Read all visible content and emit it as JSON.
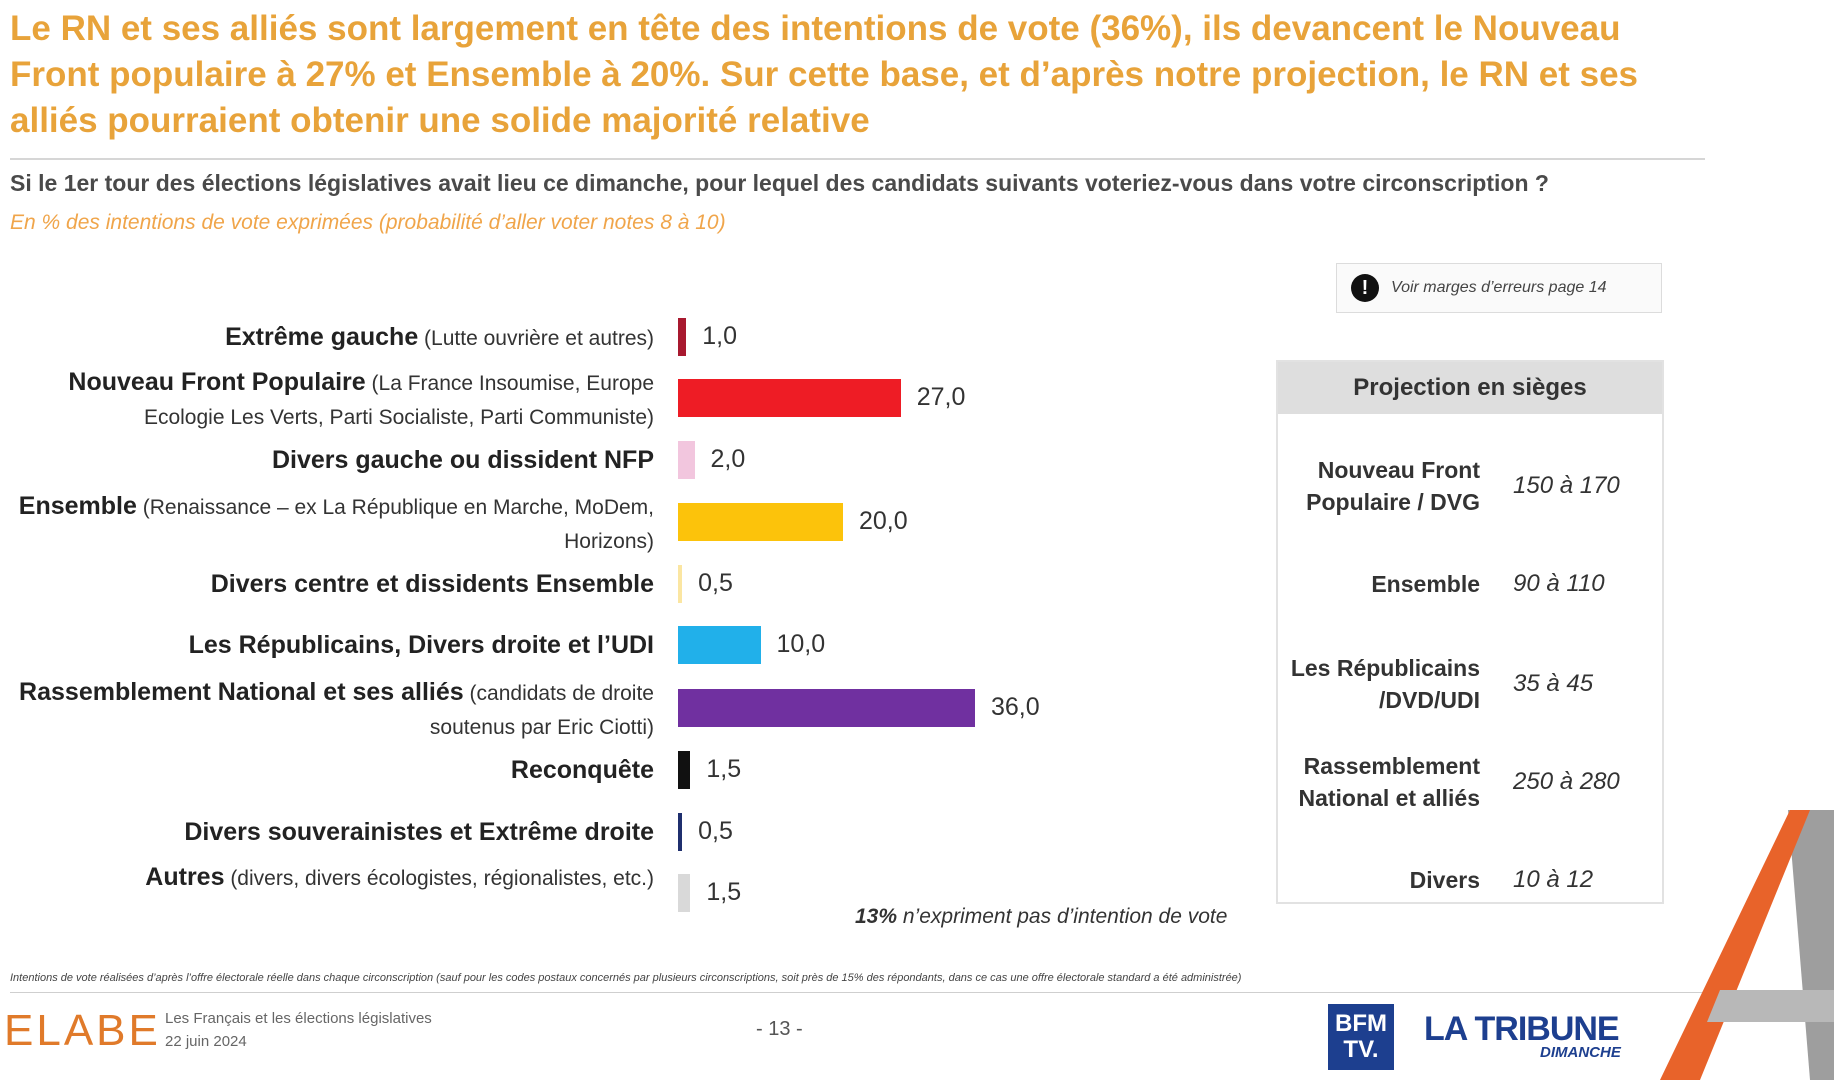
{
  "headline": "Le RN et ses alliés sont largement en tête des intentions de vote (36%), ils devancent le Nouveau Front populaire à 27% et Ensemble à 20%. Sur cette base, et d’après notre projection, le RN et ses alliés pourraient obtenir une solide majorité relative",
  "question": "Si le 1er tour des élections législatives avait lieu ce dimanche, pour lequel des candidats suivants voteriez-vous dans votre circonscription ?",
  "subtitle": "En % des intentions de vote exprimées (probabilité d’aller voter notes 8 à 10)",
  "error_note": "Voir marges d’erreurs page 14",
  "chart_data": {
    "type": "bar",
    "orientation": "horizontal",
    "title": "Si le 1er tour des élections législatives avait lieu ce dimanche, pour lequel des candidats suivants voteriez-vous dans votre circonscription ?",
    "unit": "% des intentions de vote exprimées",
    "xlim": [
      0,
      40
    ],
    "bars": [
      {
        "name": "Extrême gauche",
        "detail": "(Lutte ouvrière et autres)",
        "value": 1.0,
        "label": "1,0",
        "color": "#a8192f"
      },
      {
        "name": "Nouveau Front Populaire",
        "detail": "(La France Insoumise, Europe Ecologie Les Verts, Parti Socialiste, Parti Communiste)",
        "value": 27.0,
        "label": "27,0",
        "color": "#ee1c25"
      },
      {
        "name": "Divers gauche ou dissident NFP",
        "detail": "",
        "value": 2.0,
        "label": "2,0",
        "color": "#f2c6de"
      },
      {
        "name": "Ensemble",
        "detail": "(Renaissance – ex La République en Marche, MoDem, Horizons)",
        "value": 20.0,
        "label": "20,0",
        "color": "#fcc30b"
      },
      {
        "name": "Divers centre et dissidents Ensemble",
        "detail": "",
        "value": 0.5,
        "label": "0,5",
        "color": "#fbe6a2"
      },
      {
        "name": "Les Républicains, Divers droite et l’UDI",
        "detail": "",
        "value": 10.0,
        "label": "10,0",
        "color": "#21b0ea"
      },
      {
        "name": "Rassemblement National et ses alliés",
        "detail": "(candidats de droite soutenus par Eric Ciotti)",
        "value": 36.0,
        "label": "36,0",
        "color": "#7030a0"
      },
      {
        "name": "Reconquête",
        "detail": "",
        "value": 1.5,
        "label": "1,5",
        "color": "#111111"
      },
      {
        "name": "Divers souverainistes et Extrême droite",
        "detail": "",
        "value": 0.5,
        "label": "0,5",
        "color": "#1f2f6e"
      },
      {
        "name": "Autres",
        "detail": "(divers, divers écologistes, régionalistes, etc.)",
        "value": 1.5,
        "label": "1,5",
        "color": "#d9d9d9"
      }
    ],
    "annotation": "13% n’expriment pas d’intention de vote"
  },
  "no_intention": {
    "bold": "13%",
    "rest": " n’expriment pas d’intention de vote"
  },
  "projection": {
    "title": "Projection en sièges",
    "rows": [
      {
        "party": "Nouveau Front Populaire / DVG",
        "range": "150 à 170"
      },
      {
        "party": "Ensemble",
        "range": "90 à 110"
      },
      {
        "party": "Les Républicains /DVD/UDI",
        "range": "35 à 45"
      },
      {
        "party": "Rassemblement National et alliés",
        "range": "250 à 280"
      },
      {
        "party": "Divers",
        "range": "10 à 12"
      }
    ]
  },
  "methodology": "Intentions de vote réalisées d’après l’offre électorale réelle dans chaque circonscription (sauf pour les codes postaux concernés par plusieurs circonscriptions, soit près de 15% des répondants, dans ce cas une offre électorale standard a été administrée)",
  "footer": {
    "logo": "ELABE",
    "study_title": "Les Français et les élections législatives",
    "study_date": "22 juin 2024",
    "page": "- 13 -",
    "bfm_top": "BFM",
    "bfm_bottom": "TV.",
    "tribune": "LA TRIBUNE",
    "tribune_sub": "DIMANCHE"
  },
  "colors": {
    "accent": "#e8a33a",
    "subtitle": "#f0a54a",
    "elabe": "#e07a2a",
    "brand_blue": "#1d3f8f"
  }
}
